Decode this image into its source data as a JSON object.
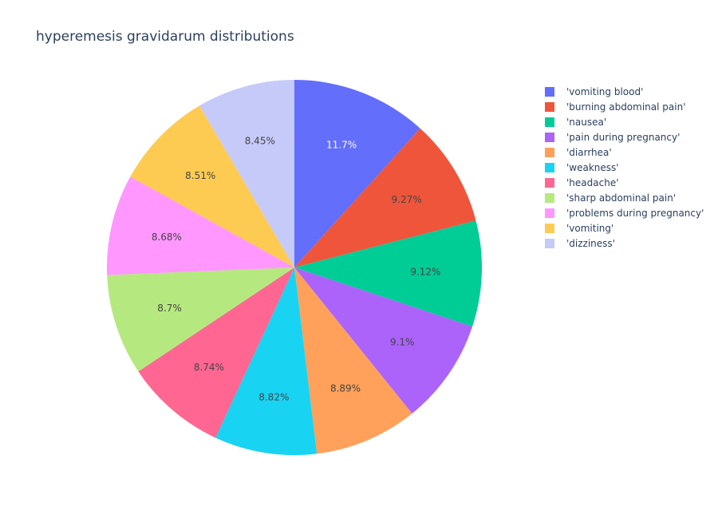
{
  "chart_data": {
    "type": "pie",
    "title": "hyperemesis gravidarum distributions",
    "legend_placement": "right",
    "sort": "descending",
    "direction": "clockwise",
    "start": "12 o'clock",
    "slices": [
      {
        "label": "'vomiting blood'",
        "value": 11.7,
        "text": "11.7%",
        "color": "#636efa",
        "text_color": "#ffffff"
      },
      {
        "label": "'burning abdominal pain'",
        "value": 9.27,
        "text": "9.27%",
        "color": "#EF553B",
        "text_color": "#444444"
      },
      {
        "label": "'nausea'",
        "value": 9.12,
        "text": "9.12%",
        "color": "#00cc96",
        "text_color": "#444444"
      },
      {
        "label": "'pain during pregnancy'",
        "value": 9.1,
        "text": "9.1%",
        "color": "#ab63fa",
        "text_color": "#444444"
      },
      {
        "label": "'diarrhea'",
        "value": 8.89,
        "text": "8.89%",
        "color": "#FFA15A",
        "text_color": "#444444"
      },
      {
        "label": "'weakness'",
        "value": 8.82,
        "text": "8.82%",
        "color": "#19d3f3",
        "text_color": "#444444"
      },
      {
        "label": "'headache'",
        "value": 8.74,
        "text": "8.74%",
        "color": "#FF6692",
        "text_color": "#444444"
      },
      {
        "label": "'sharp abdominal pain'",
        "value": 8.7,
        "text": "8.7%",
        "color": "#B6E880",
        "text_color": "#444444"
      },
      {
        "label": "'problems during pregnancy'",
        "value": 8.68,
        "text": "8.68%",
        "color": "#FF97FF",
        "text_color": "#444444"
      },
      {
        "label": "'vomiting'",
        "value": 8.51,
        "text": "8.51%",
        "color": "#FECB52",
        "text_color": "#444444"
      },
      {
        "label": "'dizziness'",
        "value": 8.45,
        "text": "8.45%",
        "color": "#c6caf8",
        "text_color": "#444444"
      }
    ]
  }
}
